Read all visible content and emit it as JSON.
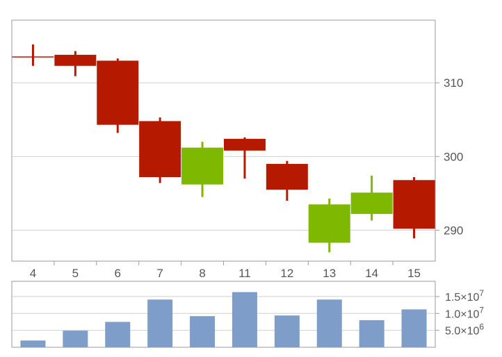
{
  "chart_data": [
    {
      "type": "candlestick",
      "categories": [
        "4",
        "5",
        "6",
        "7",
        "8",
        "11",
        "12",
        "13",
        "14",
        "15"
      ],
      "series": [
        {
          "open": [
            313.5,
            313.8,
            313.0,
            304.8,
            296.2,
            302.4,
            299.0,
            288.3,
            292.2,
            296.8
          ],
          "high": [
            315.2,
            314.3,
            313.3,
            305.3,
            302.0,
            302.6,
            299.4,
            294.3,
            297.4,
            297.2
          ],
          "low": [
            312.3,
            310.9,
            303.2,
            296.4,
            294.5,
            297.0,
            294.0,
            287.0,
            291.3,
            288.9
          ],
          "close": [
            313.5,
            312.3,
            304.3,
            297.2,
            301.2,
            300.8,
            295.5,
            293.5,
            295.1,
            290.2
          ]
        }
      ],
      "y_ticks": [
        "290",
        "300",
        "310"
      ],
      "ylim": [
        285.8,
        318.5
      ],
      "up_color": "#7fb800",
      "down_color": "#b51a00",
      "grid": true
    },
    {
      "type": "bar",
      "categories": [
        "4",
        "5",
        "6",
        "7",
        "8",
        "11",
        "12",
        "13",
        "14",
        "15"
      ],
      "values": [
        2000000,
        4900000,
        7500000,
        14100000,
        9200000,
        16300000,
        9400000,
        14100000,
        8000000,
        11200000
      ],
      "y_ticks": [
        {
          "value": 5000000,
          "mantissa": "5.0",
          "exponent": "6"
        },
        {
          "value": 10000000,
          "mantissa": "1.0",
          "exponent": "7"
        },
        {
          "value": 15000000,
          "mantissa": "1.5",
          "exponent": "7"
        }
      ],
      "tick_times": "×10",
      "ylim": [
        0,
        19500000
      ],
      "bar_color": "#7e9ec9",
      "grid": true
    }
  ]
}
